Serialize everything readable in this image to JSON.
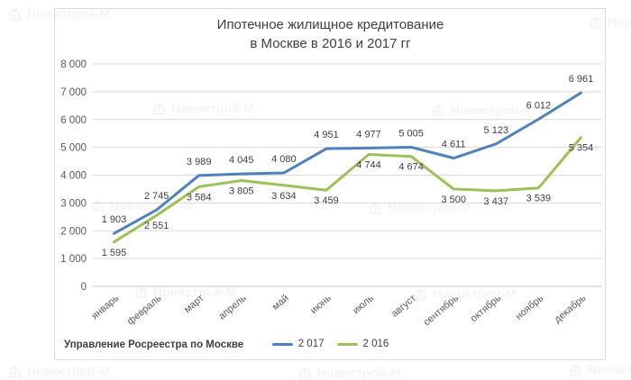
{
  "watermark": {
    "text": "Новострой-М",
    "icon": "building-icon"
  },
  "title": {
    "line1": "Ипотечное жилищное кредитование",
    "line2": "в Москве в 2016 и 2017 гг"
  },
  "source": "Управление Росреестра по Москве",
  "chart_data": {
    "type": "line",
    "title": "Ипотечное жилищное кредитование в Москве в 2016 и 2017 гг",
    "categories": [
      "январь",
      "февраль",
      "март",
      "апрель",
      "май",
      "июнь",
      "июль",
      "август",
      "сентябрь",
      "октябрь",
      "ноябрь",
      "декабрь"
    ],
    "series": [
      {
        "name": "2 017",
        "color": "#4e81bd",
        "values": [
          1903,
          2745,
          3989,
          4045,
          4080,
          4951,
          4977,
          5005,
          4611,
          5123,
          6012,
          6961
        ],
        "labels": [
          "1 903",
          "2 745",
          "3 989",
          "4 045",
          "4 080",
          "4 951",
          "4 977",
          "5 005",
          "4 611",
          "5 123",
          "6 012",
          "6 961"
        ],
        "label_position": "above"
      },
      {
        "name": "2 016",
        "color": "#9cc158",
        "values": [
          1595,
          2551,
          3584,
          3805,
          3634,
          3459,
          4744,
          4674,
          3500,
          3437,
          3539,
          5354
        ],
        "labels": [
          "1 595",
          "2 551",
          "3 584",
          "3 805",
          "3 634",
          "3 459",
          "4 744",
          "4 674",
          "3 500",
          "3 437",
          "3 539",
          "5 354"
        ],
        "label_position": "below"
      }
    ],
    "ylim": [
      0,
      8000
    ],
    "ytick_step": 1000,
    "ytick_labels": [
      "0",
      "1 000",
      "2 000",
      "3 000",
      "4 000",
      "5 000",
      "6 000",
      "7 000",
      "8 000"
    ],
    "grid": "horizontal",
    "legend_position": "bottom",
    "colors": {
      "grid": "#d9d9d9",
      "axis": "#c6c6c6",
      "axis_text": "#595959",
      "label_text": "#404040"
    }
  }
}
